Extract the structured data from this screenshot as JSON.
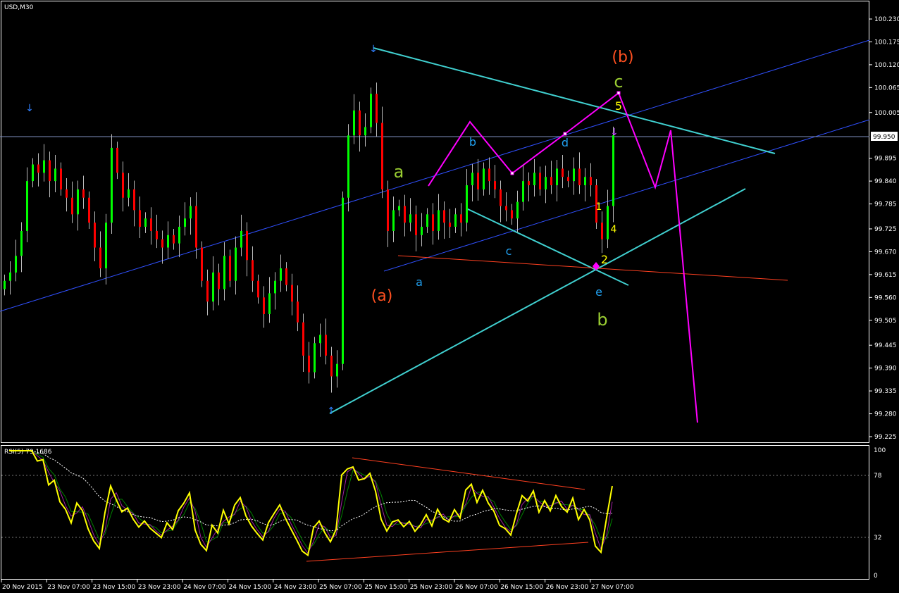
{
  "chart_data": {
    "type": "candlestick",
    "symbol_label": "USD,M30",
    "current_price_label": "99.950",
    "y_ticks": [
      "100.230",
      "100.175",
      "100.120",
      "100.065",
      "100.005",
      "99.895",
      "99.840",
      "99.785",
      "99.725",
      "99.670",
      "99.615",
      "99.560",
      "99.505",
      "99.445",
      "99.390",
      "99.335",
      "99.280",
      "99.225"
    ],
    "ylim": [
      99.225,
      100.23
    ],
    "x_ticks": [
      "20 Nov 2015",
      "23 Nov 07:00",
      "23 Nov 15:00",
      "23 Nov 23:00",
      "24 Nov 07:00",
      "24 Nov 15:00",
      "24 Nov 23:00",
      "25 Nov 07:00",
      "25 Nov 15:00",
      "25 Nov 23:00",
      "26 Nov 07:00",
      "26 Nov 15:00",
      "26 Nov 23:00",
      "27 Nov 07:00"
    ],
    "closes": [
      99.6,
      99.62,
      99.66,
      99.72,
      99.84,
      99.88,
      99.86,
      99.89,
      99.84,
      99.87,
      99.82,
      99.8,
      99.76,
      99.82,
      99.8,
      99.74,
      99.68,
      99.63,
      99.74,
      99.92,
      99.86,
      99.8,
      99.82,
      99.77,
      99.73,
      99.75,
      99.72,
      99.7,
      99.68,
      99.71,
      99.69,
      99.73,
      99.75,
      99.78,
      99.68,
      99.6,
      99.55,
      99.62,
      99.58,
      99.66,
      99.6,
      99.68,
      99.72,
      99.65,
      99.6,
      99.56,
      99.52,
      99.57,
      99.6,
      99.63,
      99.59,
      99.55,
      99.5,
      99.42,
      99.38,
      99.45,
      99.47,
      99.42,
      99.37,
      99.4,
      99.8,
      99.95,
      100.01,
      99.95,
      99.97,
      100.05,
      99.98,
      99.82,
      99.72,
      99.77,
      99.78,
      99.74,
      99.76,
      99.71,
      99.73,
      99.76,
      99.72,
      99.77,
      99.74,
      99.73,
      99.76,
      99.74,
      99.83,
      99.86,
      99.82,
      99.87,
      99.84,
      99.82,
      99.78,
      99.77,
      99.75,
      99.79,
      99.84,
      99.83,
      99.86,
      99.82,
      99.85,
      99.83,
      99.87,
      99.85,
      99.84,
      99.87,
      99.83,
      99.85,
      99.83,
      99.74,
      99.7,
      99.78,
      99.95
    ],
    "colors": {
      "up": "#00ff00",
      "down": "#ff0000",
      "background": "#000000",
      "grid_text": "#ffffff"
    },
    "indicator": {
      "label": "RSI(5) 79.1686",
      "levels": [
        "78",
        "32"
      ],
      "axis_ticks": [
        "100",
        "0"
      ],
      "color": "#ffff00"
    },
    "annotations": {
      "wave_b_big": "(b)",
      "wave_a_big": "(a)",
      "c_green": "c",
      "a_green": "a",
      "b_green": "b",
      "five": "5",
      "one": "1",
      "two": "2",
      "four": "4",
      "a_cyan": "a",
      "b_cyan": "b",
      "c_cyan": "c",
      "d_cyan": "d",
      "e_cyan": "e"
    }
  }
}
